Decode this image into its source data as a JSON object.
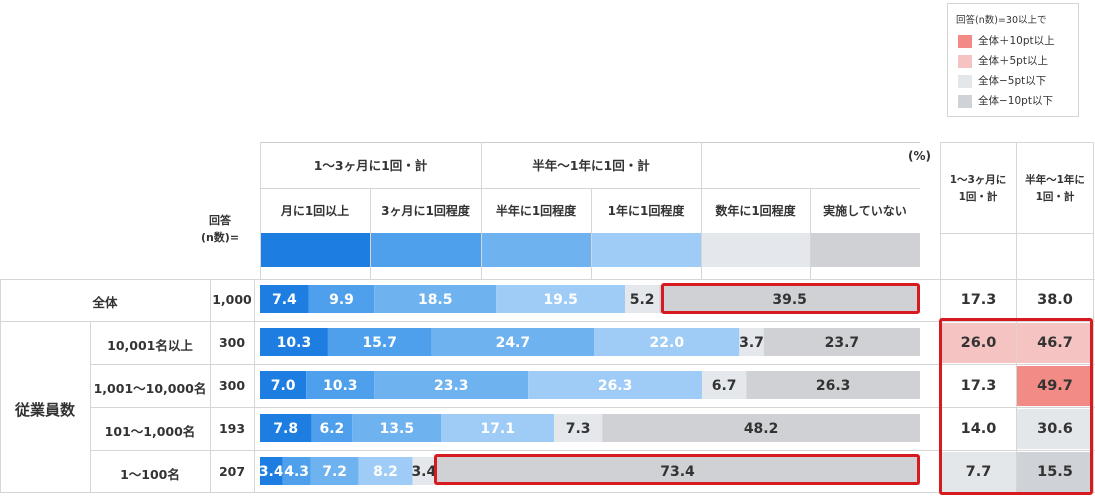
{
  "legend": {
    "title": "回答(n数)=30以上で",
    "items": [
      {
        "label": "全体＋10pt以上",
        "color": "#f28b86"
      },
      {
        "label": "全体＋5pt以上",
        "color": "#f5c4c2"
      },
      {
        "label": "全体−5pt以下",
        "color": "#e4e7ea"
      },
      {
        "label": "全体−10pt以下",
        "color": "#cfd2d6"
      }
    ]
  },
  "header": {
    "group1": "1～3ヶ月に1回・計",
    "group2": "半年～1年に1回・計",
    "percent": "(%)",
    "n_label_line1": "回答",
    "n_label_line2": "(n数)=",
    "side1_line1": "1～3ヶ月に",
    "side1_line2": "1回・計",
    "side2_line1": "半年～1年に",
    "side2_line2": "1回・計"
  },
  "group_label": "従業員数",
  "chart_data": {
    "type": "bar",
    "stacked": true,
    "orientation": "horizontal",
    "unit": "%",
    "categories": [
      "全体",
      "10,001名以上",
      "1,001～10,000名",
      "101～1,000名",
      "1～100名"
    ],
    "n": [
      "1,000",
      "300",
      "300",
      "193",
      "207"
    ],
    "series": [
      {
        "name": "月に1回以上",
        "color": "#1e7de0",
        "values": [
          7.4,
          10.3,
          7.0,
          7.8,
          3.4
        ]
      },
      {
        "name": "3ヶ月に1回程度",
        "color": "#4ea0ec",
        "values": [
          9.9,
          15.7,
          10.3,
          6.2,
          4.3
        ]
      },
      {
        "name": "半年に1回程度",
        "color": "#6fb2f0",
        "values": [
          18.5,
          24.7,
          23.3,
          13.5,
          7.2
        ]
      },
      {
        "name": "1年に1回程度",
        "color": "#9fccf6",
        "values": [
          19.5,
          22.0,
          26.3,
          17.1,
          8.2
        ]
      },
      {
        "name": "数年に1回程度",
        "color": "#e4e8ec",
        "values": [
          5.2,
          3.7,
          6.7,
          7.3,
          3.4
        ]
      },
      {
        "name": "実施していない",
        "color": "#cfd1d4",
        "values": [
          39.5,
          23.7,
          26.3,
          48.2,
          73.4
        ]
      }
    ],
    "side_values": [
      {
        "v1": "17.3",
        "v2": "38.0",
        "c1": "",
        "c2": ""
      },
      {
        "v1": "26.0",
        "v2": "46.7",
        "c1": "#f5c4c2",
        "c2": "#f5c4c2"
      },
      {
        "v1": "17.3",
        "v2": "49.7",
        "c1": "",
        "c2": "#f28b86"
      },
      {
        "v1": "14.0",
        "v2": "30.6",
        "c1": "",
        "c2": "#e4e7ea"
      },
      {
        "v1": "7.7",
        "v2": "15.5",
        "c1": "#e4e7ea",
        "c2": "#cfd2d6"
      }
    ],
    "highlight_color": "#d71920"
  }
}
